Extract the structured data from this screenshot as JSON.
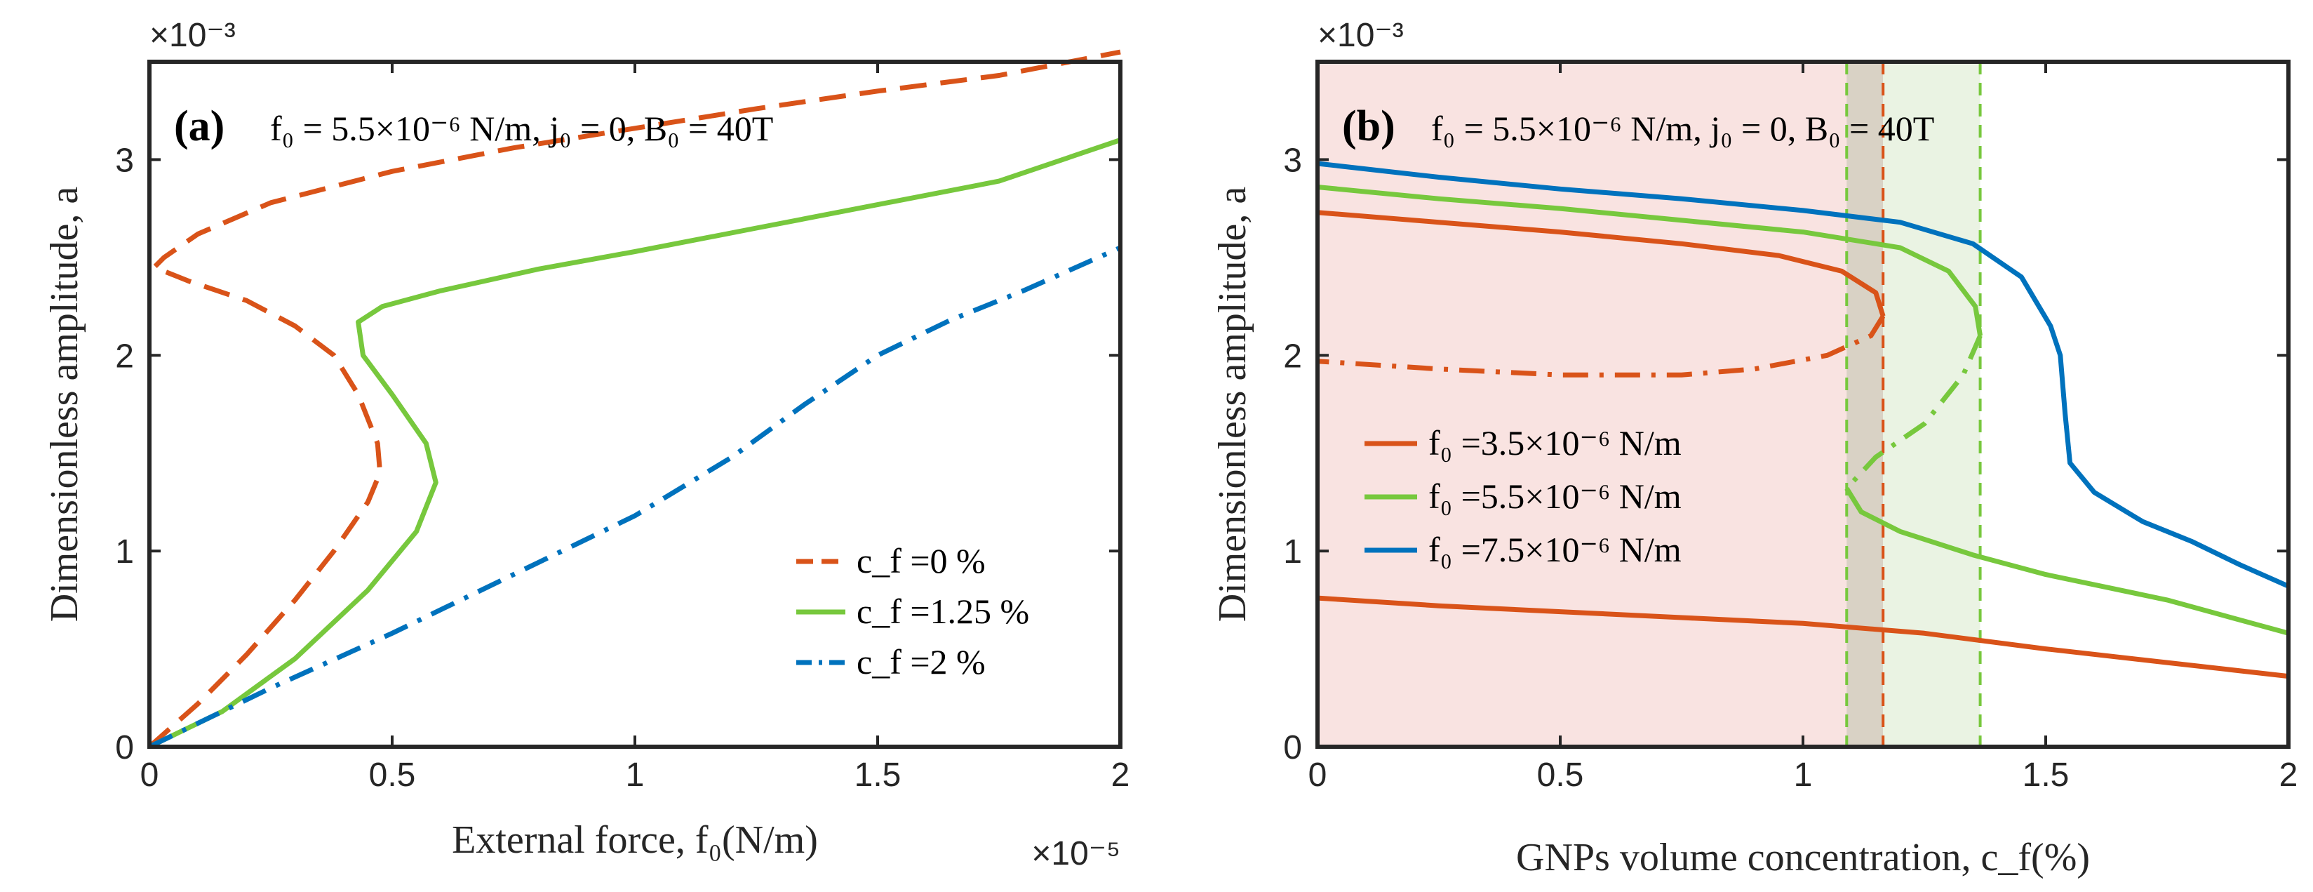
{
  "chart_data": [
    {
      "type": "line",
      "panel": "(a)",
      "annotation": "f₀ = 5.5×10⁻⁶ N/m, j₀ = 0, B₀ = 40T",
      "xlabel": "External force, f₀(N/m)",
      "ylabel": "Dimensionless amplitude, a",
      "x_exponent": "×10⁻⁵",
      "y_exponent": "×10⁻³",
      "xlim": [
        0,
        2
      ],
      "ylim": [
        0,
        3.5
      ],
      "xticks": [
        0,
        0.5,
        1,
        1.5,
        2
      ],
      "xtick_labels": [
        "0",
        "0.5",
        "1",
        "1.5",
        "2"
      ],
      "yticks": [
        0,
        1,
        2,
        3
      ],
      "ytick_labels": [
        "0",
        "1",
        "2",
        "3"
      ],
      "legend_position": "bottom-right",
      "series": [
        {
          "name": "c_f = 0 %",
          "label": "c_f =0 %",
          "color": "#D95319",
          "style": "dashed",
          "points": [
            [
              0,
              0
            ],
            [
              0.1,
              0.22
            ],
            [
              0.2,
              0.47
            ],
            [
              0.3,
              0.75
            ],
            [
              0.38,
              1.0
            ],
            [
              0.45,
              1.25
            ],
            [
              0.475,
              1.4
            ],
            [
              0.47,
              1.55
            ],
            [
              0.43,
              1.8
            ],
            [
              0.38,
              2.0
            ],
            [
              0.3,
              2.15
            ],
            [
              0.2,
              2.28
            ],
            [
              0.08,
              2.38
            ],
            [
              0.01,
              2.45
            ],
            [
              0.03,
              2.5
            ],
            [
              0.1,
              2.62
            ],
            [
              0.25,
              2.78
            ],
            [
              0.5,
              2.94
            ],
            [
              0.75,
              3.06
            ],
            [
              1.0,
              3.16
            ],
            [
              1.25,
              3.26
            ],
            [
              1.5,
              3.35
            ],
            [
              1.75,
              3.43
            ],
            [
              2.0,
              3.55
            ]
          ]
        },
        {
          "name": "c_f = 1.25 %",
          "label": "c_f =1.25 %",
          "color": "#77C83D",
          "style": "solid",
          "points": [
            [
              0,
              0
            ],
            [
              0.15,
              0.18
            ],
            [
              0.3,
              0.45
            ],
            [
              0.45,
              0.8
            ],
            [
              0.55,
              1.1
            ],
            [
              0.59,
              1.35
            ],
            [
              0.57,
              1.55
            ],
            [
              0.5,
              1.8
            ],
            [
              0.44,
              2.0
            ],
            [
              0.43,
              2.17
            ],
            [
              0.48,
              2.25
            ],
            [
              0.6,
              2.33
            ],
            [
              0.8,
              2.44
            ],
            [
              1.0,
              2.53
            ],
            [
              1.25,
              2.65
            ],
            [
              1.5,
              2.77
            ],
            [
              1.75,
              2.89
            ],
            [
              2.0,
              3.1
            ]
          ]
        },
        {
          "name": "c_f = 2 %",
          "label": "c_f =2 %",
          "color": "#0072BD",
          "style": "dashdot",
          "points": [
            [
              0,
              0
            ],
            [
              0.25,
              0.3
            ],
            [
              0.5,
              0.58
            ],
            [
              0.75,
              0.88
            ],
            [
              1.0,
              1.18
            ],
            [
              1.2,
              1.48
            ],
            [
              1.35,
              1.75
            ],
            [
              1.5,
              2.0
            ],
            [
              1.65,
              2.18
            ],
            [
              1.8,
              2.33
            ],
            [
              2.0,
              2.55
            ]
          ]
        }
      ]
    },
    {
      "type": "line",
      "panel": "(b)",
      "annotation": "f₀ = 5.5×10⁻⁶ N/m, j₀ = 0, B₀ = 40T",
      "xlabel": "GNPs volume concentration, c_f(%)",
      "ylabel": "Dimensionless amplitude, a",
      "y_exponent": "×10⁻³",
      "xlim": [
        0,
        2
      ],
      "ylim": [
        0,
        3.5
      ],
      "xticks": [
        0,
        0.5,
        1,
        1.5,
        2
      ],
      "xtick_labels": [
        "0",
        "0.5",
        "1",
        "1.5",
        "2"
      ],
      "yticks": [
        0,
        1,
        2,
        3
      ],
      "ytick_labels": [
        "0",
        "1",
        "2",
        "3"
      ],
      "legend_position": "middle-left",
      "vlines": [
        {
          "x": 1.09,
          "color": "#77C83D"
        },
        {
          "x": 1.165,
          "color": "#D95319"
        },
        {
          "x": 1.365,
          "color": "#77C83D"
        }
      ],
      "shaded_regions": [
        {
          "x_from": 0,
          "x_to": 1.165,
          "color": "#F9E3E1"
        },
        {
          "x_from": 1.09,
          "x_to": 1.165,
          "color": "#D9D2C5"
        },
        {
          "x_from": 1.165,
          "x_to": 1.365,
          "color": "#EAF3E3"
        }
      ],
      "series": [
        {
          "name": "f₀ = 3.5×10⁻⁶ N/m",
          "label": "f₀ =3.5×10⁻⁶ N/m",
          "color": "#D95319",
          "branches": [
            {
              "style": "solid",
              "points": [
                [
                  0,
                  0.76
                ],
                [
                  0.25,
                  0.72
                ],
                [
                  0.5,
                  0.69
                ],
                [
                  0.75,
                  0.66
                ],
                [
                  1.0,
                  0.63
                ],
                [
                  1.25,
                  0.58
                ],
                [
                  1.5,
                  0.5
                ],
                [
                  1.75,
                  0.43
                ],
                [
                  2.0,
                  0.36
                ]
              ]
            },
            {
              "style": "solid",
              "points": [
                [
                  0,
                  2.73
                ],
                [
                  0.25,
                  2.68
                ],
                [
                  0.5,
                  2.63
                ],
                [
                  0.75,
                  2.57
                ],
                [
                  0.95,
                  2.51
                ],
                [
                  1.08,
                  2.43
                ],
                [
                  1.15,
                  2.32
                ],
                [
                  1.165,
                  2.2
                ]
              ]
            },
            {
              "style": "dashdot",
              "points": [
                [
                  1.165,
                  2.2
                ],
                [
                  1.14,
                  2.1
                ],
                [
                  1.05,
                  2.0
                ],
                [
                  0.9,
                  1.93
                ],
                [
                  0.75,
                  1.9
                ],
                [
                  0.5,
                  1.9
                ],
                [
                  0.25,
                  1.93
                ],
                [
                  0,
                  1.97
                ]
              ]
            }
          ]
        },
        {
          "name": "f₀ = 5.5×10⁻⁶ N/m",
          "label": "f₀ =5.5×10⁻⁶ N/m",
          "color": "#77C83D",
          "branches": [
            {
              "style": "solid",
              "points": [
                [
                  0,
                  2.86
                ],
                [
                  0.25,
                  2.8
                ],
                [
                  0.5,
                  2.75
                ],
                [
                  0.75,
                  2.69
                ],
                [
                  1.0,
                  2.63
                ],
                [
                  1.2,
                  2.55
                ],
                [
                  1.3,
                  2.43
                ],
                [
                  1.355,
                  2.25
                ],
                [
                  1.365,
                  2.1
                ]
              ]
            },
            {
              "style": "dashdot",
              "points": [
                [
                  1.365,
                  2.1
                ],
                [
                  1.33,
                  1.9
                ],
                [
                  1.25,
                  1.65
                ],
                [
                  1.15,
                  1.48
                ],
                [
                  1.09,
                  1.32
                ]
              ]
            },
            {
              "style": "solid",
              "points": [
                [
                  1.09,
                  1.32
                ],
                [
                  1.12,
                  1.2
                ],
                [
                  1.2,
                  1.1
                ],
                [
                  1.35,
                  0.98
                ],
                [
                  1.5,
                  0.88
                ],
                [
                  1.75,
                  0.75
                ],
                [
                  2.0,
                  0.58
                ]
              ]
            }
          ]
        },
        {
          "name": "f₀ = 7.5×10⁻⁶ N/m",
          "label": "f₀ =7.5×10⁻⁶ N/m",
          "color": "#0072BD",
          "branches": [
            {
              "style": "solid",
              "points": [
                [
                  0,
                  2.98
                ],
                [
                  0.25,
                  2.91
                ],
                [
                  0.5,
                  2.85
                ],
                [
                  0.75,
                  2.8
                ],
                [
                  1.0,
                  2.74
                ],
                [
                  1.2,
                  2.68
                ],
                [
                  1.35,
                  2.57
                ],
                [
                  1.45,
                  2.4
                ],
                [
                  1.51,
                  2.15
                ],
                [
                  1.53,
                  2.0
                ],
                [
                  1.54,
                  1.7
                ],
                [
                  1.55,
                  1.45
                ],
                [
                  1.6,
                  1.3
                ],
                [
                  1.7,
                  1.15
                ],
                [
                  1.8,
                  1.05
                ],
                [
                  1.9,
                  0.93
                ],
                [
                  2.0,
                  0.82
                ]
              ]
            }
          ]
        }
      ]
    }
  ]
}
